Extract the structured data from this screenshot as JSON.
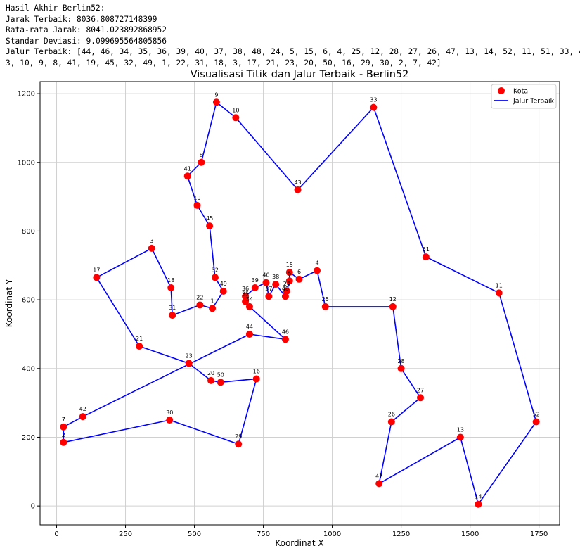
{
  "console": {
    "lines": [
      "Hasil Akhir Berlin52:",
      "Jarak Terbaik: 8036.808727148399",
      "Rata-rata Jarak: 8041.023892868952",
      "Standar Deviasi: 9.099695564805856",
      "Jalur Terbaik: [44, 46, 34, 35, 36, 39, 40, 37, 38, 48, 24, 5, 15, 6, 4, 25, 12, 28, 27, 26, 47, 13, 14, 52, 11, 51, 33, 4",
      "3, 10, 9, 8, 41, 19, 45, 32, 49, 1, 22, 31, 18, 3, 17, 21, 23, 20, 50, 16, 29, 30, 2, 7, 42]"
    ]
  },
  "chart_data": {
    "type": "scatter",
    "title": "Visualisasi Titik dan Jalur Terbaik - Berlin52",
    "xlabel": "Koordinat X",
    "ylabel": "Koordinat Y",
    "xlim": [
      -60,
      1825
    ],
    "ylim": [
      -55,
      1235
    ],
    "xticks": [
      0,
      250,
      500,
      750,
      1000,
      1250,
      1500,
      1750
    ],
    "yticks": [
      0,
      200,
      400,
      600,
      800,
      1000,
      1200
    ],
    "grid": true,
    "legend_position": "top-right",
    "legend": {
      "points": "Kota",
      "path": "Jalur Terbaik"
    },
    "colors": {
      "points": "#ff0000",
      "path": "#0000ff",
      "grid": "#d0d0d0"
    },
    "points": [
      {
        "label": "1",
        "x": 565,
        "y": 575
      },
      {
        "label": "2",
        "x": 25,
        "y": 185
      },
      {
        "label": "3",
        "x": 345,
        "y": 750
      },
      {
        "label": "4",
        "x": 945,
        "y": 685
      },
      {
        "label": "5",
        "x": 845,
        "y": 655
      },
      {
        "label": "6",
        "x": 880,
        "y": 660
      },
      {
        "label": "7",
        "x": 25,
        "y": 230
      },
      {
        "label": "8",
        "x": 525,
        "y": 1000
      },
      {
        "label": "9",
        "x": 580,
        "y": 1175
      },
      {
        "label": "10",
        "x": 650,
        "y": 1130
      },
      {
        "label": "11",
        "x": 1605,
        "y": 620
      },
      {
        "label": "12",
        "x": 1220,
        "y": 580
      },
      {
        "label": "13",
        "x": 1465,
        "y": 200
      },
      {
        "label": "14",
        "x": 1530,
        "y": 5
      },
      {
        "label": "15",
        "x": 845,
        "y": 680
      },
      {
        "label": "16",
        "x": 725,
        "y": 370
      },
      {
        "label": "17",
        "x": 145,
        "y": 665
      },
      {
        "label": "18",
        "x": 415,
        "y": 635
      },
      {
        "label": "19",
        "x": 510,
        "y": 875
      },
      {
        "label": "20",
        "x": 560,
        "y": 365
      },
      {
        "label": "21",
        "x": 300,
        "y": 465
      },
      {
        "label": "22",
        "x": 520,
        "y": 585
      },
      {
        "label": "23",
        "x": 480,
        "y": 415
      },
      {
        "label": "24",
        "x": 835,
        "y": 625
      },
      {
        "label": "25",
        "x": 975,
        "y": 580
      },
      {
        "label": "26",
        "x": 1215,
        "y": 245
      },
      {
        "label": "27",
        "x": 1320,
        "y": 315
      },
      {
        "label": "28",
        "x": 1250,
        "y": 400
      },
      {
        "label": "29",
        "x": 660,
        "y": 180
      },
      {
        "label": "30",
        "x": 410,
        "y": 250
      },
      {
        "label": "31",
        "x": 420,
        "y": 555
      },
      {
        "label": "32",
        "x": 575,
        "y": 665
      },
      {
        "label": "33",
        "x": 1150,
        "y": 1160
      },
      {
        "label": "34",
        "x": 700,
        "y": 580
      },
      {
        "label": "35",
        "x": 685,
        "y": 595
      },
      {
        "label": "36",
        "x": 685,
        "y": 610
      },
      {
        "label": "37",
        "x": 770,
        "y": 610
      },
      {
        "label": "38",
        "x": 795,
        "y": 645
      },
      {
        "label": "39",
        "x": 720,
        "y": 635
      },
      {
        "label": "40",
        "x": 760,
        "y": 650
      },
      {
        "label": "41",
        "x": 475,
        "y": 960
      },
      {
        "label": "42",
        "x": 95,
        "y": 260
      },
      {
        "label": "43",
        "x": 875,
        "y": 920
      },
      {
        "label": "44",
        "x": 700,
        "y": 500
      },
      {
        "label": "45",
        "x": 555,
        "y": 815
      },
      {
        "label": "46",
        "x": 830,
        "y": 485
      },
      {
        "label": "47",
        "x": 1170,
        "y": 65
      },
      {
        "label": "48",
        "x": 830,
        "y": 610
      },
      {
        "label": "49",
        "x": 605,
        "y": 625
      },
      {
        "label": "50",
        "x": 595,
        "y": 360
      },
      {
        "label": "51",
        "x": 1340,
        "y": 725
      },
      {
        "label": "52",
        "x": 1740,
        "y": 245
      }
    ],
    "path": [
      44,
      46,
      34,
      35,
      36,
      39,
      40,
      37,
      38,
      48,
      24,
      5,
      15,
      6,
      4,
      25,
      12,
      28,
      27,
      26,
      47,
      13,
      14,
      52,
      11,
      51,
      33,
      43,
      10,
      9,
      8,
      41,
      19,
      45,
      32,
      49,
      1,
      22,
      31,
      18,
      3,
      17,
      21,
      23,
      20,
      50,
      16,
      29,
      30,
      2,
      7,
      42,
      44
    ]
  }
}
